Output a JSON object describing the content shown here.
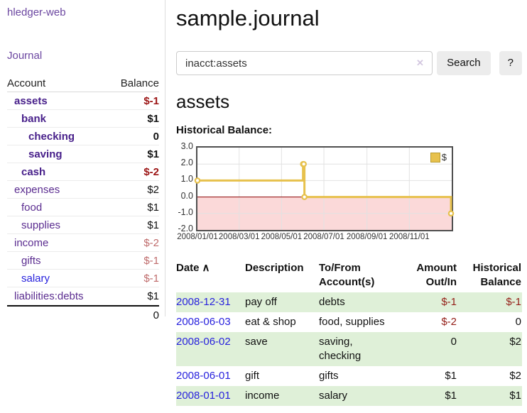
{
  "app": {
    "brand": "hledger-web",
    "title": "sample.journal"
  },
  "icons": {
    "sort_asc": "∧",
    "clear": "✕"
  },
  "colors": {
    "link_purple": "#5b2d90",
    "link_blue": "#2822dd",
    "negative_strong": "#9c1515",
    "negative_soft": "#bf6b6b",
    "row_green": "#dff0d8",
    "series_yellow": "#e7c14d"
  },
  "sidebar": {
    "journal_link": "Journal",
    "accounts": {
      "header_account": "Account",
      "header_balance": "Balance",
      "rows": [
        {
          "name": "assets",
          "balance": "$-1",
          "depth": 1,
          "matched": true,
          "balance_style": "neg-strong"
        },
        {
          "name": "bank",
          "balance": "$1",
          "depth": 2,
          "matched": true,
          "balance_style": "pos-strong"
        },
        {
          "name": "checking",
          "balance": "0",
          "depth": 3,
          "matched": true,
          "balance_style": "pos-strong"
        },
        {
          "name": "saving",
          "balance": "$1",
          "depth": 3,
          "matched": true,
          "balance_style": "pos-strong"
        },
        {
          "name": "cash",
          "balance": "$-2",
          "depth": 2,
          "matched": true,
          "balance_style": "neg-strong"
        },
        {
          "name": "expenses",
          "balance": "$2",
          "depth": 1,
          "matched": false,
          "balance_style": "pos"
        },
        {
          "name": "food",
          "balance": "$1",
          "depth": 2,
          "matched": false,
          "balance_style": "pos"
        },
        {
          "name": "supplies",
          "balance": "$1",
          "depth": 2,
          "matched": false,
          "balance_style": "pos"
        },
        {
          "name": "income",
          "balance": "$-2",
          "depth": 1,
          "matched": false,
          "balance_style": "neg"
        },
        {
          "name": "gifts",
          "balance": "$-1",
          "depth": 2,
          "matched": false,
          "balance_style": "neg"
        },
        {
          "name": "salary",
          "balance": "$-1",
          "depth": 2,
          "matched": false,
          "balance_style": "neg",
          "link_color": "blue"
        },
        {
          "name": "liabilities:debts",
          "balance": "$1",
          "depth": 1,
          "matched": false,
          "balance_style": "pos"
        }
      ],
      "total": "0"
    }
  },
  "search": {
    "value": "inacct:assets",
    "button": "Search",
    "help_button": "?"
  },
  "content": {
    "account_heading": "assets",
    "chart_title": "Historical Balance:"
  },
  "chart_data": {
    "type": "line",
    "style": "step",
    "title": "Historical Balance:",
    "legend": "$",
    "legend_position": "top-right",
    "series": [
      {
        "name": "$",
        "color": "#e7c14d",
        "points": [
          [
            "2008-01-01",
            1
          ],
          [
            "2008-06-01",
            2
          ],
          [
            "2008-06-02",
            2
          ],
          [
            "2008-06-03",
            0
          ],
          [
            "2008-12-31",
            -1
          ]
        ]
      }
    ],
    "x_range": [
      "2008-01-01",
      "2009-01-01"
    ],
    "x_ticks": [
      "2008/01/01",
      "2008/03/01",
      "2008/05/01",
      "2008/07/01",
      "2008/09/01",
      "2008/11/01"
    ],
    "y_ticks": [
      "3.0",
      "2.0",
      "1.0",
      "0.0",
      "-1.0",
      "-2.0"
    ],
    "ylim": [
      -2,
      3
    ],
    "grid": true,
    "negative_region_color": "#fbd9d9",
    "zero_line_color": "#8b0000"
  },
  "register": {
    "headers": [
      {
        "key": "date",
        "label": "Date",
        "sorted": true
      },
      {
        "key": "description",
        "label": "Description"
      },
      {
        "key": "accounts",
        "label": "To/From Account(s)"
      },
      {
        "key": "amount",
        "label": "Amount Out/In",
        "align": "right"
      },
      {
        "key": "balance",
        "label": "Historical Balance",
        "align": "right"
      }
    ],
    "rows": [
      {
        "date": "2008-12-31",
        "description": "pay off",
        "accounts": "debts",
        "amount": "$-1",
        "amount_neg": true,
        "balance": "$-1",
        "balance_neg": true,
        "shaded": true
      },
      {
        "date": "2008-06-03",
        "description": "eat & shop",
        "accounts": "food, supplies",
        "amount": "$-2",
        "amount_neg": true,
        "balance": "0",
        "balance_neg": false,
        "shaded": false
      },
      {
        "date": "2008-06-02",
        "description": "save",
        "accounts": "saving, checking",
        "amount": "0",
        "amount_neg": false,
        "balance": "$2",
        "balance_neg": false,
        "shaded": true
      },
      {
        "date": "2008-06-01",
        "description": "gift",
        "accounts": "gifts",
        "amount": "$1",
        "amount_neg": false,
        "balance": "$2",
        "balance_neg": false,
        "shaded": false
      },
      {
        "date": "2008-01-01",
        "description": "income",
        "accounts": "salary",
        "amount": "$1",
        "amount_neg": false,
        "balance": "$1",
        "balance_neg": false,
        "shaded": true
      }
    ]
  }
}
